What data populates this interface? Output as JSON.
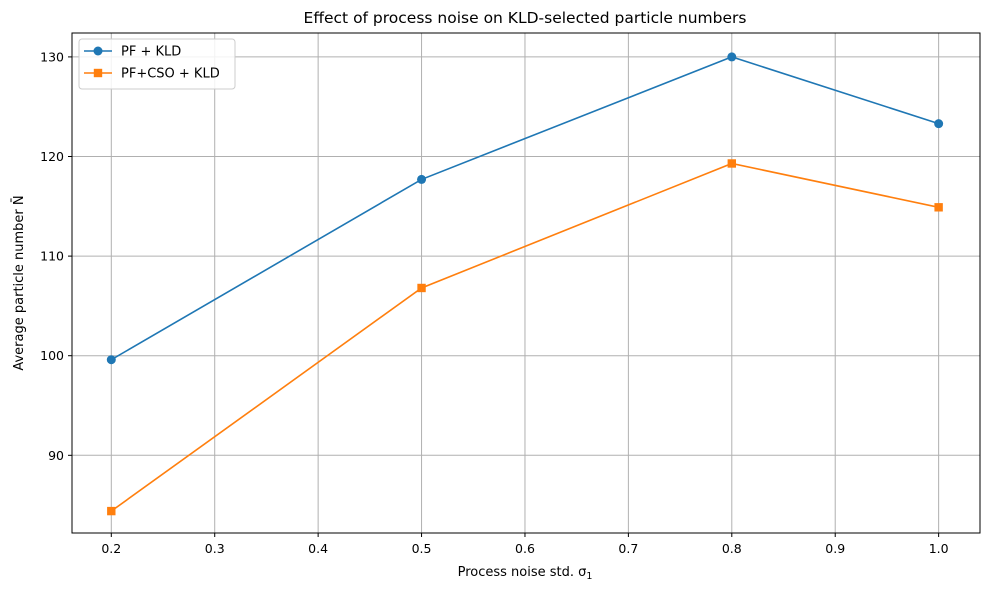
{
  "chart_data": {
    "type": "line",
    "title": "Effect of process noise on KLD-selected particle numbers",
    "xlabel": "Process noise std. σ",
    "xlabel_sub": "1",
    "ylabel": "Average particle number N̄",
    "x": [
      0.2,
      0.5,
      0.8,
      1.0
    ],
    "xlim": [
      0.162,
      1.04
    ],
    "ylim": [
      82.2,
      132.4
    ],
    "xticks": [
      0.2,
      0.3,
      0.4,
      0.5,
      0.6,
      0.7,
      0.8,
      0.9,
      1.0
    ],
    "xtick_labels": [
      "0.2",
      "0.3",
      "0.4",
      "0.5",
      "0.6",
      "0.7",
      "0.8",
      "0.9",
      "1.0"
    ],
    "yticks": [
      90,
      100,
      110,
      120,
      130
    ],
    "ytick_labels": [
      "90",
      "100",
      "110",
      "120",
      "130"
    ],
    "grid": true,
    "legend_position": "top-left",
    "series": [
      {
        "name": "PF + KLD",
        "color": "#1f77b4",
        "marker": "circle",
        "values": [
          99.6,
          117.7,
          130.0,
          123.3
        ]
      },
      {
        "name": "PF+CSO + KLD",
        "color": "#ff7f0e",
        "marker": "square",
        "values": [
          84.4,
          106.8,
          119.3,
          114.9
        ]
      }
    ]
  }
}
